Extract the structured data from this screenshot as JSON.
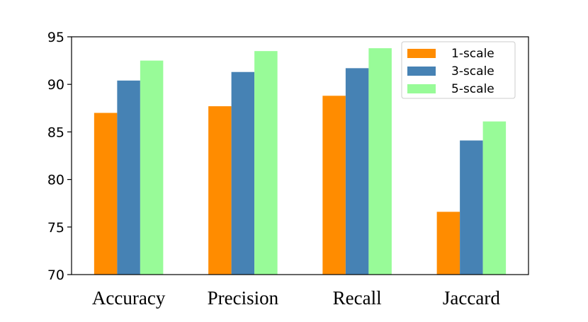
{
  "chart_data": {
    "type": "bar",
    "title": "",
    "xlabel": "",
    "ylabel": "",
    "categories": [
      "Accuracy",
      "Precision",
      "Recall",
      "Jaccard"
    ],
    "series": [
      {
        "name": "1-scale",
        "color": "#ff8c00",
        "values": [
          87.0,
          87.7,
          88.8,
          76.6
        ]
      },
      {
        "name": "3-scale",
        "color": "#4682b4",
        "values": [
          90.4,
          91.3,
          91.7,
          84.1
        ]
      },
      {
        "name": "5-scale",
        "color": "#98fb98",
        "values": [
          92.5,
          93.5,
          93.8,
          86.1
        ]
      }
    ],
    "ylim": [
      70,
      95
    ],
    "yticks": [
      70,
      75,
      80,
      85,
      90,
      95
    ],
    "grid": false,
    "legend": "top-right"
  }
}
